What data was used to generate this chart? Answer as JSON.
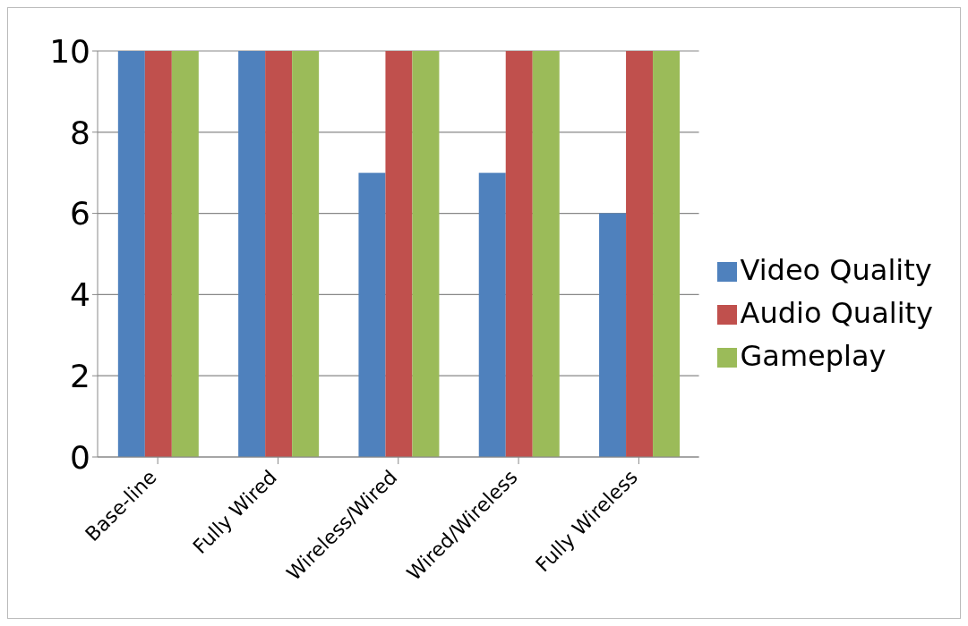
{
  "chart_data": {
    "type": "bar",
    "categories": [
      "Base-line",
      "Fully Wired",
      "Wireless/Wired",
      "Wired/Wireless",
      "Fully Wireless"
    ],
    "series": [
      {
        "name": "Video Quality",
        "color": "#4f81bd",
        "values": [
          10,
          10,
          7,
          7,
          6
        ]
      },
      {
        "name": "Audio Quality",
        "color": "#c0504d",
        "values": [
          10,
          10,
          10,
          10,
          10
        ]
      },
      {
        "name": "Gameplay",
        "color": "#9bbb59",
        "values": [
          10,
          10,
          10,
          10,
          10
        ]
      }
    ],
    "ylim": [
      0,
      10
    ],
    "yticks": [
      0,
      2,
      4,
      6,
      8,
      10
    ],
    "grid": "y",
    "legend": "right"
  }
}
